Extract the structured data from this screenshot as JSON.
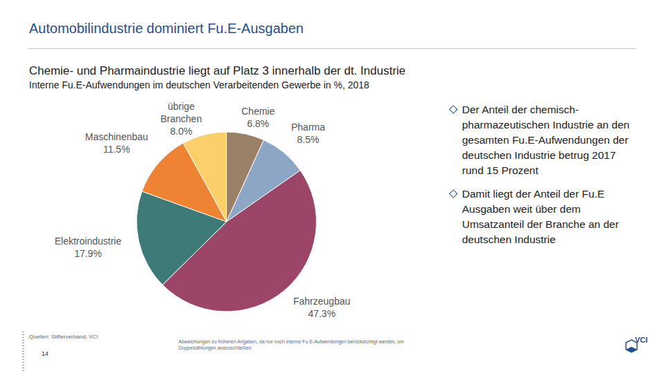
{
  "header": {
    "title": "Automobilindustrie dominiert Fu.E-Ausgaben",
    "subtitle": "Chemie- und Pharmaindustrie liegt auf Platz 3 innerhalb der dt. Industrie"
  },
  "chart_data": {
    "type": "pie",
    "title": "Interne Fu.E-Aufwendungen im deutschen Verarbeitenden Gewerbe in %, 2018",
    "categories": [
      "Chemie",
      "Pharma",
      "Fahrzeugbau",
      "Elektroindustrie",
      "Maschinenbau",
      "übrige Branchen"
    ],
    "values": [
      6.8,
      8.5,
      47.3,
      17.9,
      11.5,
      8.0
    ],
    "value_labels": [
      "6.8%",
      "8.5%",
      "47.3%",
      "17.9%",
      "11.5%",
      "8.0%"
    ],
    "colors": [
      "#9b8068",
      "#8ea6c6",
      "#9b4668",
      "#3e7b78",
      "#ee8433",
      "#fbd06a"
    ],
    "data_labels": true
  },
  "bullets": [
    "Der Anteil der chemisch-pharmazeutischen Industrie an den gesamten Fu.E-Aufwendungen der deutschen Industrie betrug 2017 rund 15 Prozent",
    "Damit liegt der Anteil der Fu.E Ausgaben weit über dem Umsatzanteil der Branche an der deutschen Industrie"
  ],
  "footer": {
    "source": "Quellen: Stifterverband, VCI",
    "page": "14",
    "note": "Abweichungen zu früheren Angaben, da nur noch interne Fu.E-Aufwendungen berücksichtigt werden, um Doppelzählungen auszuschließen.",
    "logo": "VCI"
  }
}
